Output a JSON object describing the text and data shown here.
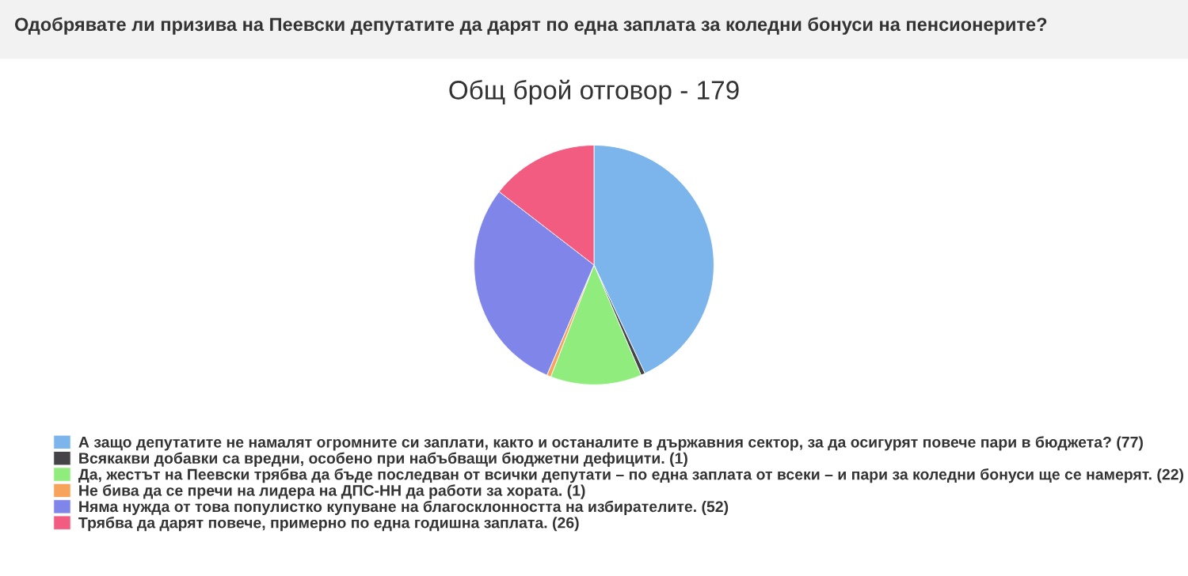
{
  "chart_data": {
    "type": "pie",
    "title": "Одобрявате ли призива на Пеевски депутатите да дарят по една заплата за коледни бонуси на пенсионерите?",
    "subtitle": "Общ брой отговор - 179",
    "categories": [
      "А защо депутатите не намалят огромните си заплати, както и останалите в държавния сектор, за да осигурят повече пари в бюджета? (77)",
      "Всякакви добавки са вредни, особено при набъбващи бюджетни дефицити. (1)",
      "Да, жестът на Пеевски трябва да бъде последван от всички депутати – по една заплата от всеки – и пари за коледни бонуси ще се намерят. (22)",
      "Не бива да се пречи на лидера на ДПС-НН да работи за хората. (1)",
      "Няма нужда от това популистко купуване на благосклонността на избирателите. (52)",
      "Трябва да дарят повече, примерно по една годишна заплата. (26)"
    ],
    "values": [
      77,
      1,
      22,
      1,
      52,
      26
    ],
    "colors": [
      "#7cb5ec",
      "#434348",
      "#90ed7d",
      "#f7a35c",
      "#8085e9",
      "#f15c80"
    ],
    "legend": "bottom"
  }
}
